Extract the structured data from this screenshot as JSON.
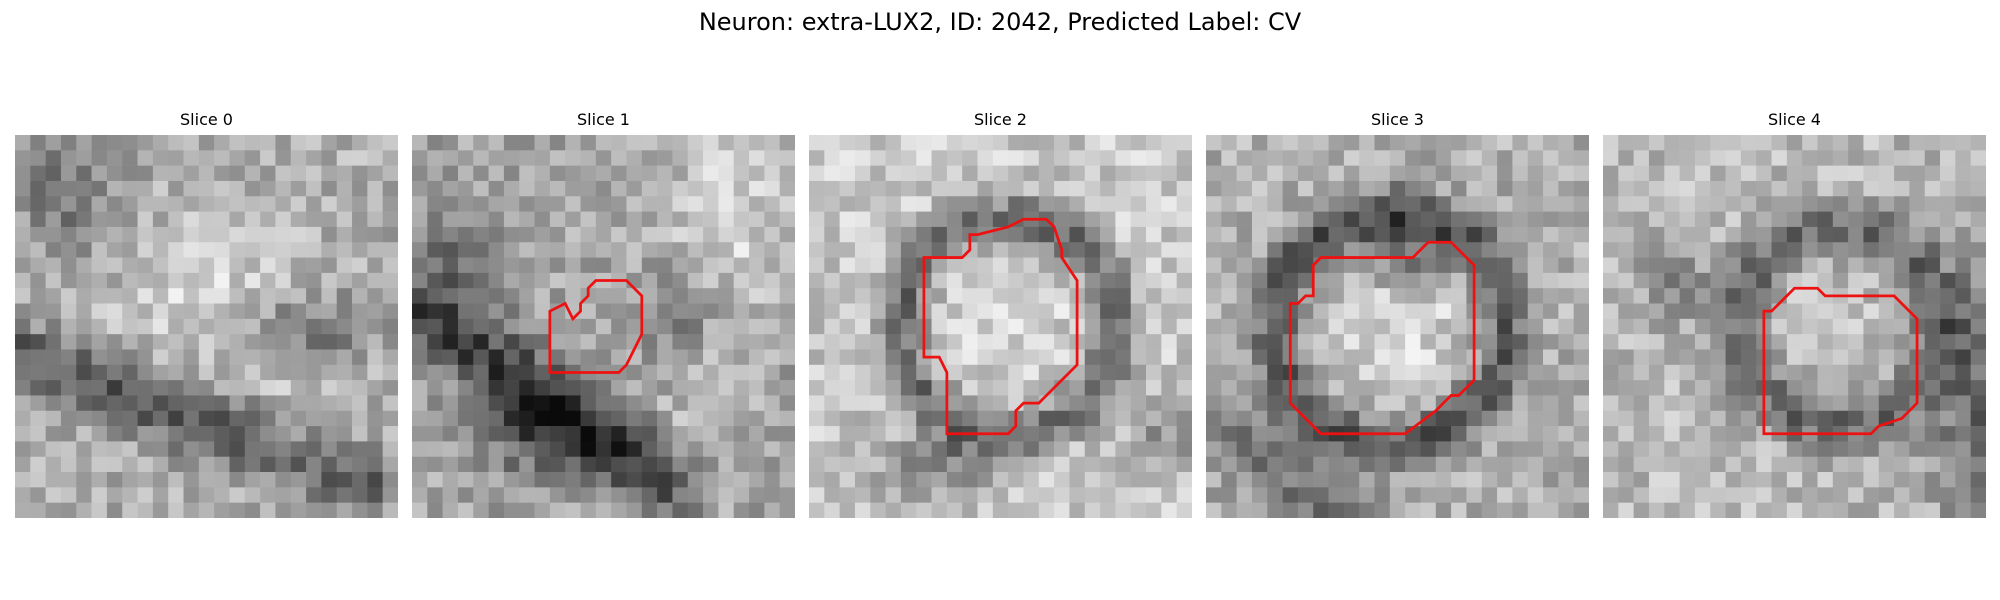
{
  "figure": {
    "suptitle": "Neuron: extra-LUX2, ID: 2042, Predicted Label: CV",
    "contour_color": "#ee1111",
    "grid_size": 25
  },
  "panels": [
    {
      "title": "Slice 0",
      "has_contour": false
    },
    {
      "title": "Slice 1",
      "has_contour": true
    },
    {
      "title": "Slice 2",
      "has_contour": true
    },
    {
      "title": "Slice 3",
      "has_contour": true
    },
    {
      "title": "Slice 4",
      "has_contour": true
    }
  ]
}
